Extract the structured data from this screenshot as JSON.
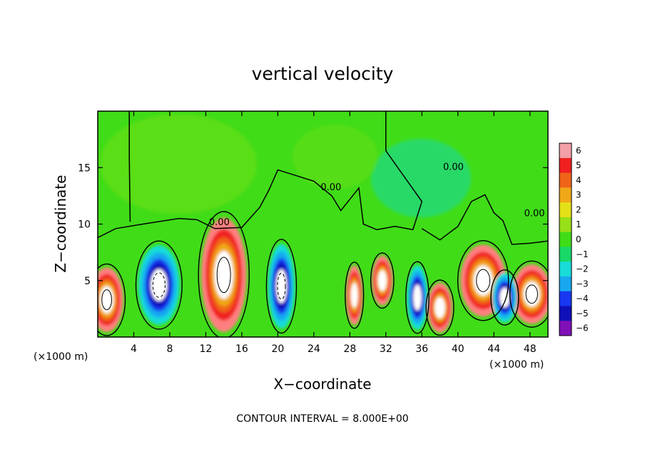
{
  "chart_data": {
    "type": "heatmap",
    "title": "vertical velocity",
    "xlabel": "X−coordinate",
    "ylabel": "Z−coordinate",
    "x_unit": "(×1000 m)",
    "x_unit_right": "(×1000 m)",
    "xlim": [
      0,
      50
    ],
    "ylim": [
      0,
      20
    ],
    "x_ticks": [
      4,
      8,
      12,
      16,
      20,
      24,
      28,
      32,
      36,
      40,
      44,
      48
    ],
    "x_tick_labels": [
      "4",
      "8",
      "12",
      "16",
      "20",
      "24",
      "28",
      "32",
      "36",
      "40",
      "44",
      "48"
    ],
    "y_ticks": [
      5,
      10,
      15
    ],
    "y_tick_labels": [
      "5",
      "10",
      "15"
    ],
    "colorbar": {
      "min": -6,
      "max": 6,
      "ticks": [
        "6",
        "5",
        "4",
        "3",
        "2",
        "1",
        "0",
        "−1",
        "−2",
        "−3",
        "−4",
        "−5",
        "−6"
      ],
      "colors": [
        "#f4a0a8",
        "#f02020",
        "#f06418",
        "#f0a818",
        "#e4e018",
        "#98e018",
        "#40dc18",
        "#18d868",
        "#18dcd8",
        "#18a8f0",
        "#1838f0",
        "#1010b8",
        "#8010b8"
      ]
    },
    "contour_interval_text": "CONTOUR INTERVAL = 8.000E+00",
    "contour_labels": [
      {
        "text": "0.00",
        "x": 13.5,
        "z": 9.9
      },
      {
        "text": "0.00",
        "x": 25.9,
        "z": 13.0
      },
      {
        "text": "0.00",
        "x": 39.5,
        "z": 14.8
      },
      {
        "text": "0.00",
        "x": 48.5,
        "z": 10.7
      }
    ],
    "features": [
      {
        "kind": "updraft",
        "x": 14.0,
        "z": 5.5,
        "rx": 2.2,
        "rz": 4.6,
        "w": 9
      },
      {
        "kind": "updraft",
        "x": 1.0,
        "z": 3.3,
        "rx": 1.6,
        "rz": 2.6,
        "w": 8
      },
      {
        "kind": "updraft",
        "x": 28.5,
        "z": 3.7,
        "rx": 0.8,
        "rz": 2.4,
        "w": 6
      },
      {
        "kind": "updraft",
        "x": 31.6,
        "z": 5.0,
        "rx": 1.0,
        "rz": 2.0,
        "w": 6
      },
      {
        "kind": "updraft",
        "x": 38.0,
        "z": 2.6,
        "rx": 1.2,
        "rz": 2.0,
        "w": 6
      },
      {
        "kind": "updraft",
        "x": 42.8,
        "z": 5.0,
        "rx": 2.2,
        "rz": 2.9,
        "w": 8
      },
      {
        "kind": "updraft",
        "x": 48.2,
        "z": 3.8,
        "rx": 1.9,
        "rz": 2.4,
        "w": 8
      },
      {
        "kind": "downdraft",
        "x": 6.8,
        "z": 4.6,
        "rx": 2.0,
        "rz": 3.2,
        "w": -9
      },
      {
        "kind": "downdraft",
        "x": 20.4,
        "z": 4.5,
        "rx": 1.3,
        "rz": 3.4,
        "w": -8
      },
      {
        "kind": "downdraft",
        "x": 35.5,
        "z": 3.5,
        "rx": 1.0,
        "rz": 2.6,
        "w": -4
      },
      {
        "kind": "downdraft",
        "x": 45.2,
        "z": 3.5,
        "rx": 1.2,
        "rz": 2.0,
        "w": -4
      }
    ]
  }
}
